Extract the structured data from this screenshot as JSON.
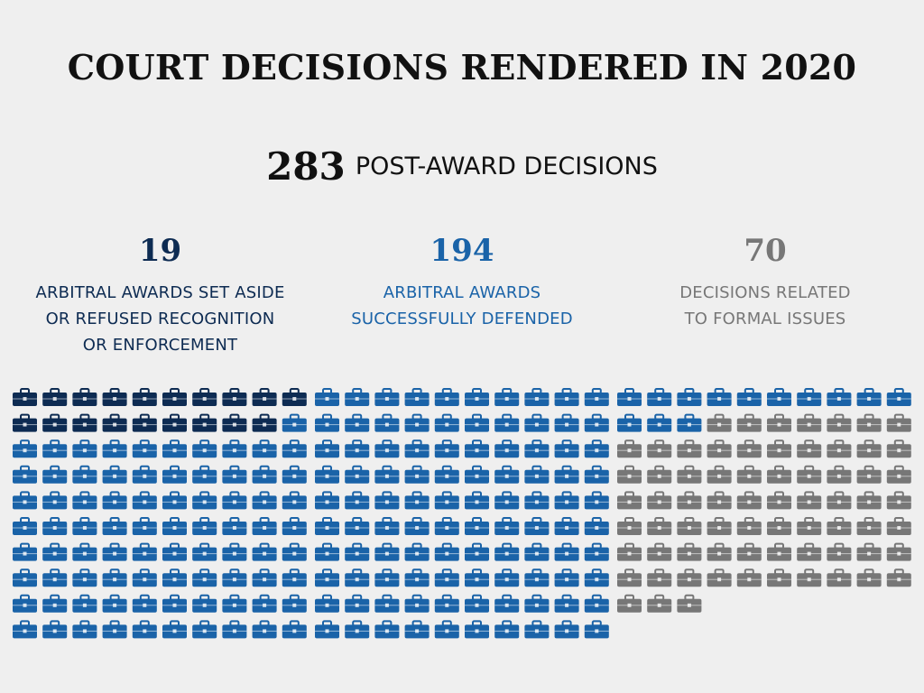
{
  "title": "COURT DECISIONS RENDERED IN 2020",
  "total": {
    "value": "283",
    "label": "POST-AWARD DECISIONS"
  },
  "stats": [
    {
      "value": "19",
      "label": "ARBITRAL AWARDS SET ASIDE\nOR REFUSED RECOGNITION\nOR ENFORCEMENT",
      "color": "#0d2b52"
    },
    {
      "value": "194",
      "label": "ARBITRAL AWARDS\nSUCCESSFULLY DEFENDED",
      "color": "#1a63a8"
    },
    {
      "value": "70",
      "label": "DECISIONS RELATED\nTO FORMAL ISSUES",
      "color": "#777777"
    }
  ],
  "chart_data": {
    "type": "waffle",
    "icon": "briefcase-icon",
    "total": 283,
    "series": [
      {
        "name": "ARBITRAL AWARDS SET ASIDE OR REFUSED RECOGNITION OR ENFORCEMENT",
        "value": 19,
        "color": "#0d2b52"
      },
      {
        "name": "ARBITRAL AWARDS SUCCESSFULLY DEFENDED",
        "value": 194,
        "color": "#1a63a8"
      },
      {
        "name": "DECISIONS RELATED TO FORMAL ISSUES",
        "value": 70,
        "color": "#777777"
      }
    ]
  }
}
